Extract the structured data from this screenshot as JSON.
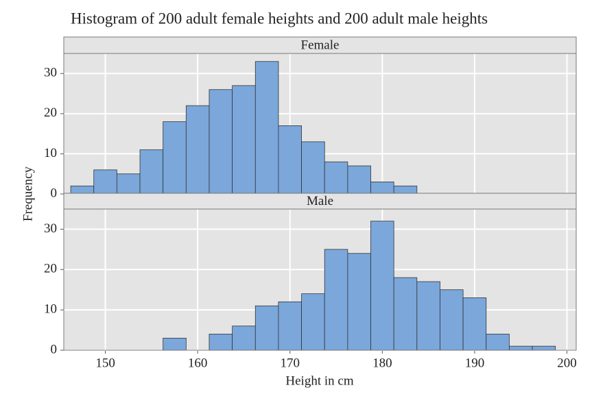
{
  "title": "Histogram of 200 adult female heights and 200 adult male heights",
  "x_label": "Height in cm",
  "y_label": "Frequency",
  "chart_data": [
    {
      "type": "histogram",
      "panel_title": "Female",
      "color": "#7ba7db",
      "grid": true,
      "bins": [
        146.25,
        148.75,
        151.25,
        153.75,
        156.25,
        158.75,
        161.25,
        163.75,
        166.25,
        168.75,
        171.25,
        173.75,
        176.25,
        178.75,
        181.25,
        183.75,
        186.25,
        188.75,
        191.25,
        193.75,
        196.25,
        198.75
      ],
      "counts": [
        2,
        6,
        5,
        11,
        18,
        22,
        26,
        27,
        33,
        17,
        13,
        8,
        7,
        3,
        2,
        0,
        0,
        0,
        0,
        0,
        0
      ],
      "xlim": [
        145.5,
        201
      ],
      "xticks": [
        150,
        160,
        170,
        180,
        190,
        200
      ],
      "ylim": [
        0,
        35
      ],
      "yticks": [
        0,
        10,
        20,
        30
      ]
    },
    {
      "type": "histogram",
      "panel_title": "Male",
      "color": "#7ba7db",
      "grid": true,
      "bins": [
        146.25,
        148.75,
        151.25,
        153.75,
        156.25,
        158.75,
        161.25,
        163.75,
        166.25,
        168.75,
        171.25,
        173.75,
        176.25,
        178.75,
        181.25,
        183.75,
        186.25,
        188.75,
        191.25,
        193.75,
        196.25,
        198.75
      ],
      "counts": [
        0,
        0,
        0,
        0,
        3,
        0,
        4,
        6,
        11,
        12,
        14,
        25,
        24,
        32,
        18,
        17,
        15,
        13,
        4,
        1,
        1
      ],
      "xlim": [
        145.5,
        201
      ],
      "xticks": [
        150,
        160,
        170,
        180,
        190,
        200
      ],
      "ylim": [
        0,
        35
      ],
      "yticks": [
        0,
        10,
        20,
        30
      ]
    }
  ]
}
